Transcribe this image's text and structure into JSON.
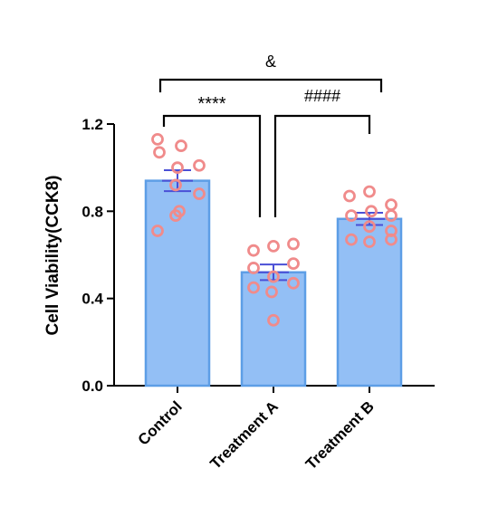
{
  "chart_data": {
    "type": "bar",
    "ylabel": "Cell Viability(CCK8)",
    "ylim": [
      0,
      1.2
    ],
    "yticks": [
      0.0,
      0.4,
      0.8,
      1.2
    ],
    "ytick_labels": [
      "0.0",
      "0.4",
      "0.8",
      "1.2"
    ],
    "categories": [
      "Control",
      "Treatment A",
      "Treatment B"
    ],
    "means": [
      0.94,
      0.52,
      0.765
    ],
    "sem": [
      0.048,
      0.036,
      0.028
    ],
    "points": [
      [
        1.13,
        1.1,
        1.07,
        1.0,
        1.01,
        0.92,
        0.88,
        0.78,
        0.8,
        0.71
      ],
      [
        0.62,
        0.64,
        0.65,
        0.56,
        0.54,
        0.5,
        0.47,
        0.45,
        0.43,
        0.3
      ],
      [
        0.87,
        0.89,
        0.83,
        0.78,
        0.8,
        0.78,
        0.73,
        0.71,
        0.67,
        0.66,
        0.67
      ]
    ],
    "significance": [
      {
        "from": 0,
        "to": 2,
        "label": "&"
      },
      {
        "from": 0,
        "to": 1,
        "label": "****"
      },
      {
        "from": 1,
        "to": 2,
        "label": "####"
      }
    ],
    "colors": {
      "bar_fill": "#93bff5",
      "bar_stroke": "#5d9ee6",
      "point_stroke": "#f08b8b",
      "error_bar": "#4a4fd6",
      "axis": "#000000"
    }
  }
}
